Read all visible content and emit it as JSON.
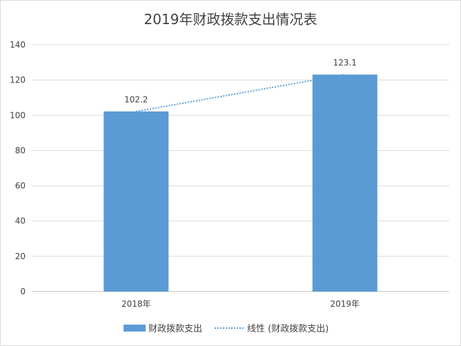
{
  "chart_data": {
    "type": "bar",
    "title": "2019年财政拨款支出情况表",
    "categories": [
      "2018年",
      "2019年"
    ],
    "series": [
      {
        "name": "财政拨款支出",
        "values": [
          102.2,
          123.1
        ],
        "color": "#5b9bd5"
      }
    ],
    "data_labels": [
      "102.2",
      "123.1"
    ],
    "trendline": {
      "name": "线性 (财政拨款支出)",
      "type": "linear",
      "style": "dotted",
      "color": "#5b9bd5"
    },
    "xlabel": "",
    "ylabel": "",
    "ylim": [
      0,
      140
    ],
    "yticks": [
      0,
      20,
      40,
      60,
      80,
      100,
      120,
      140
    ],
    "grid": true,
    "legend_position": "bottom"
  }
}
